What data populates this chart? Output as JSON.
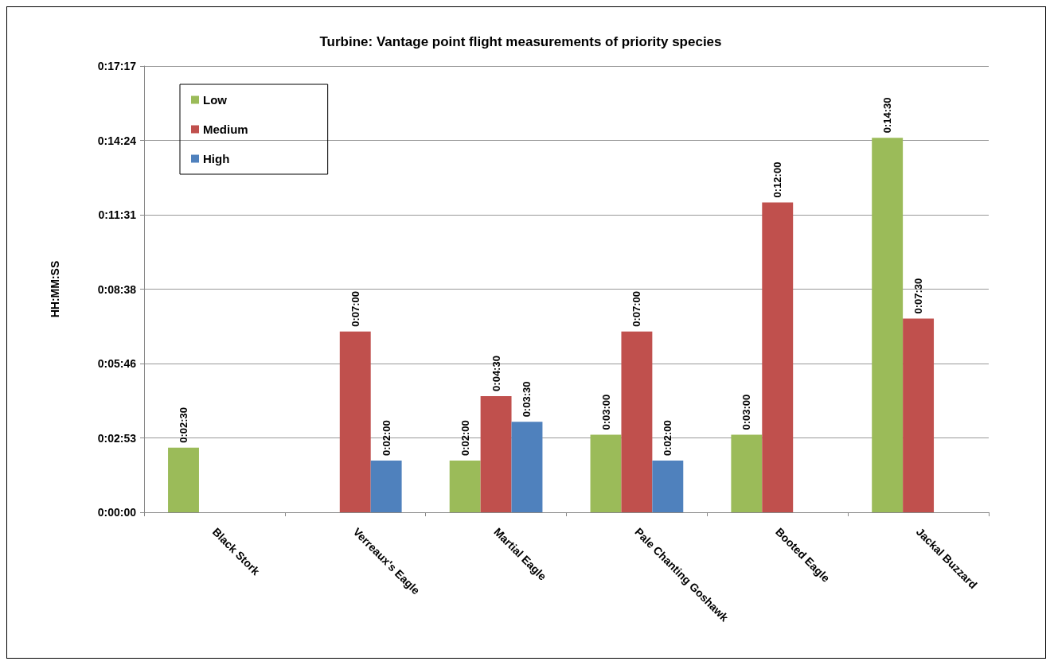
{
  "chart_data": {
    "type": "bar",
    "title": "Turbine: Vantage point flight measurements of priority species",
    "ylabel": "HH:MM:SS",
    "categories": [
      "Black Stork",
      "Verreaux's Eagle",
      "Martial Eagle",
      "Pale Chanting Goshawk",
      "Booted Eagle",
      "Jackal Buzzard"
    ],
    "series": [
      {
        "name": "Low",
        "color": "#9bbb59",
        "values": [
          150,
          null,
          120,
          180,
          180,
          870
        ],
        "value_labels": [
          "0:02:30",
          null,
          "0:02:00",
          "0:03:00",
          "0:03:00",
          "0:14:30"
        ]
      },
      {
        "name": "Medium",
        "color": "#c0504d",
        "values": [
          null,
          420,
          270,
          420,
          720,
          450
        ],
        "value_labels": [
          null,
          "0:07:00",
          "0:04:30",
          "0:07:00",
          "0:12:00",
          "0:07:30"
        ]
      },
      {
        "name": "High",
        "color": "#4f81bd",
        "values": [
          null,
          120,
          210,
          120,
          null,
          null
        ],
        "value_labels": [
          null,
          "0:02:00",
          "0:03:30",
          "0:02:00",
          null,
          null
        ]
      }
    ],
    "ylim": [
      0,
      1036.8
    ],
    "yticks": [
      {
        "value": 0,
        "label": "0:00:00"
      },
      {
        "value": 172.8,
        "label": "0:02:53"
      },
      {
        "value": 345.6,
        "label": "0:05:46"
      },
      {
        "value": 518.4,
        "label": "0:08:38"
      },
      {
        "value": 691.2,
        "label": "0:11:31"
      },
      {
        "value": 864,
        "label": "0:14:24"
      },
      {
        "value": 1036.8,
        "label": "0:17:17"
      }
    ],
    "grid": "y",
    "legend": "top left"
  }
}
